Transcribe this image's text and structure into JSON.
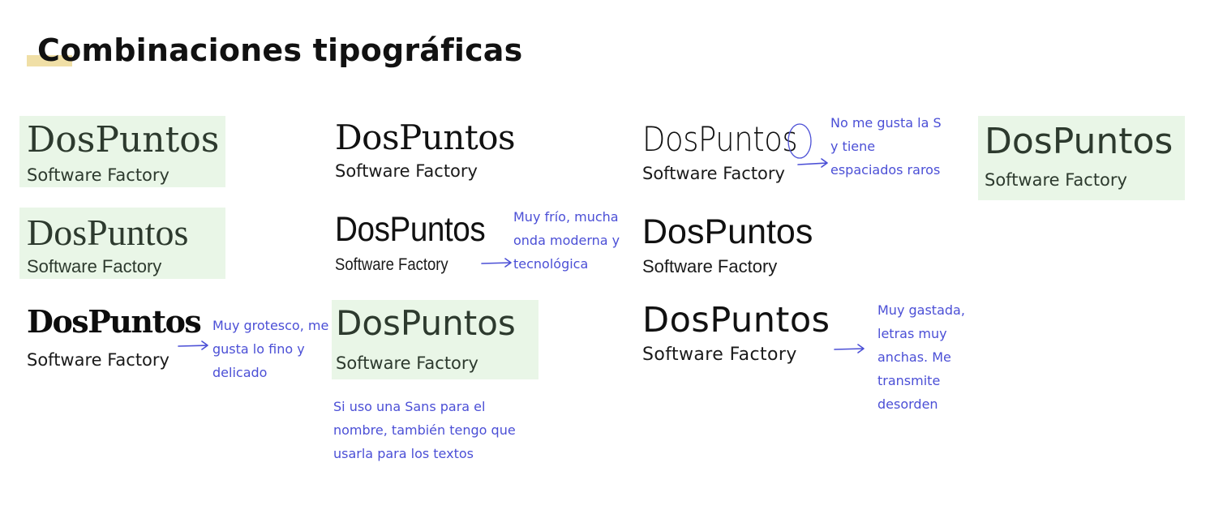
{
  "title": "Combinaciones tipográficas",
  "colors": {
    "highlight": "#f0dfa6",
    "card_bg": "#e9f6e7",
    "ink": "#1a1a1a",
    "dark_green": "#2d3a2e",
    "note": "#4b4fd6"
  },
  "combos": [
    {
      "brand": "DosPuntos",
      "sub": "Software Factory"
    },
    {
      "brand": "DosPuntos",
      "sub": "Software Factory"
    },
    {
      "brand": "DosPuntos",
      "sub": "Software Factory"
    },
    {
      "brand": "DosPuntos",
      "sub": "Software Factory"
    },
    {
      "brand": "DosPuntos",
      "sub": "Software Factory"
    },
    {
      "brand": "DosPuntos",
      "sub": "Software Factory"
    },
    {
      "brand": "DosPuntos",
      "sub": "Software Factory"
    },
    {
      "brand": "DosPuntos",
      "sub": "Software Factory"
    },
    {
      "brand": "DosPuntos",
      "sub": "Software Factory"
    },
    {
      "brand": "DosPuntos",
      "sub": "Software Factory"
    }
  ],
  "notes": {
    "grotesco": [
      "Muy grotesco, me",
      "gusta lo fino y",
      "delicado"
    ],
    "frio": [
      "Muy frío, mucha",
      "onda moderna y",
      "tecnológica"
    ],
    "sans": [
      "Si uso una Sans para el",
      "nombre, también tengo que",
      "usarla para los textos"
    ],
    "s": [
      "No me gusta la S",
      "y tiene",
      "espaciados raros"
    ],
    "gastada": [
      "Muy gastada,",
      "letras muy",
      "anchas. Me",
      "transmite",
      "desorden"
    ]
  }
}
